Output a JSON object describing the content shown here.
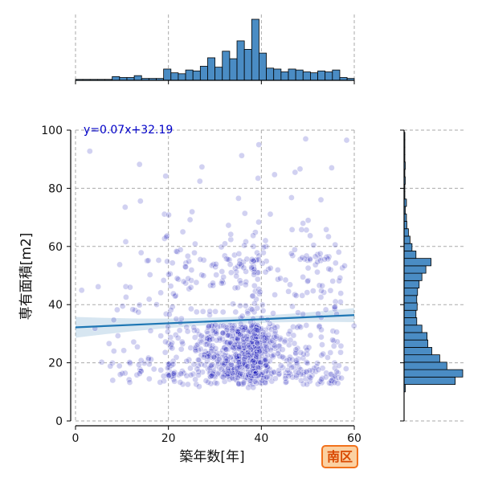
{
  "colors": {
    "scatter": "#0000b4",
    "regression": "#1f77b4",
    "hist_fill": "#4a8cc4",
    "hist_edge": "#000000",
    "grid": "#aaaaaa",
    "badge_bg": "#fbd1a2",
    "badge_border": "#f2711c",
    "badge_text": "#d94801",
    "equation_text": "#0000c8"
  },
  "badge": {
    "text": "南区"
  },
  "chart_data": {
    "type": "scatter",
    "xlabel": "築年数[年]",
    "ylabel": "専有面積[m2]",
    "xlim": [
      0,
      60
    ],
    "ylim": [
      0,
      100
    ],
    "x_ticks": [
      0,
      20,
      40,
      60
    ],
    "y_ticks": [
      0,
      20,
      40,
      60,
      80,
      100
    ],
    "grid": true,
    "regression": {
      "equation": "y=0.07x+32.19",
      "slope": 0.07,
      "intercept": 32.19
    },
    "marginal_x_histogram": {
      "bin_edges": [
        0,
        1.58,
        3.16,
        4.74,
        6.32,
        7.9,
        9.48,
        11.06,
        12.64,
        14.22,
        15.8,
        17.38,
        18.96,
        20.54,
        22.12,
        23.7,
        25.28,
        26.86,
        28.44,
        30.02,
        31.6,
        33.18,
        34.76,
        36.34,
        37.92,
        39.5,
        41.08,
        42.66,
        44.24,
        45.82,
        47.4,
        48.98,
        50.56,
        52.14,
        53.72,
        55.3,
        56.88,
        58.46,
        60
      ],
      "counts": [
        1,
        1,
        1,
        1,
        1,
        4,
        3,
        3,
        5,
        2,
        2,
        2,
        12,
        8,
        7,
        11,
        10,
        15,
        24,
        14,
        31,
        23,
        42,
        33,
        65,
        29,
        13,
        12,
        9,
        12,
        11,
        9,
        8,
        10,
        9,
        11,
        3,
        2
      ]
    },
    "marginal_y_histogram": {
      "bin_edges": [
        10,
        12.55,
        15.1,
        17.65,
        20.2,
        22.75,
        25.3,
        27.85,
        30.4,
        32.95,
        35.5,
        38.05,
        40.6,
        43.15,
        45.7,
        48.25,
        50.8,
        53.35,
        55.9,
        58.45,
        61,
        63.55,
        66.1,
        68.65,
        71.2,
        73.75,
        76.3,
        78.85,
        81.4,
        83.95,
        86.5,
        89.05,
        91.6,
        94.15,
        96.7,
        99.25
      ],
      "counts": [
        3,
        129,
        148,
        108,
        90,
        70,
        60,
        58,
        45,
        32,
        30,
        33,
        32,
        34,
        38,
        45,
        55,
        68,
        30,
        20,
        15,
        11,
        7,
        6,
        3,
        6,
        2,
        2,
        3,
        2,
        3,
        2,
        2,
        2,
        2
      ]
    }
  }
}
